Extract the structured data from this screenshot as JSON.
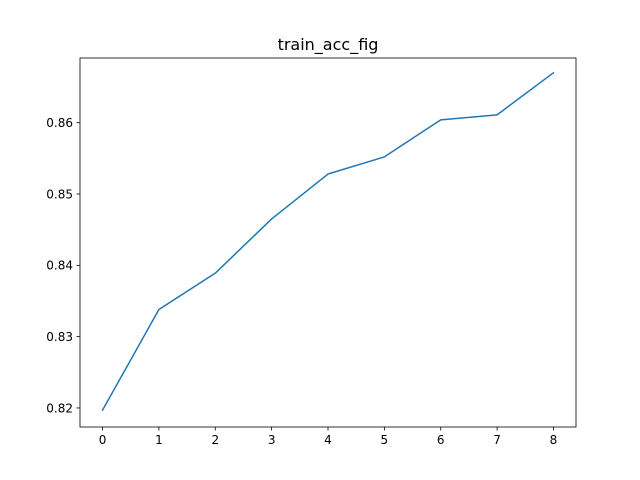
{
  "chart_data": {
    "type": "line",
    "title": "train_acc_fig",
    "xlabel": "",
    "ylabel": "",
    "x": [
      0,
      1,
      2,
      3,
      4,
      5,
      6,
      7,
      8
    ],
    "series": [
      {
        "values": [
          0.8197,
          0.8338,
          0.8389,
          0.8465,
          0.8528,
          0.8552,
          0.8604,
          0.8611,
          0.867
        ],
        "color": "#1f77b4"
      }
    ],
    "xticks": [
      "0",
      "1",
      "2",
      "3",
      "4",
      "5",
      "6",
      "7",
      "8"
    ],
    "yticks": [
      "0.82",
      "0.83",
      "0.84",
      "0.85",
      "0.86"
    ],
    "xlim": [
      -0.4,
      8.4
    ],
    "ylim": [
      0.81733,
      0.86907
    ],
    "grid": false,
    "legend": "none"
  }
}
